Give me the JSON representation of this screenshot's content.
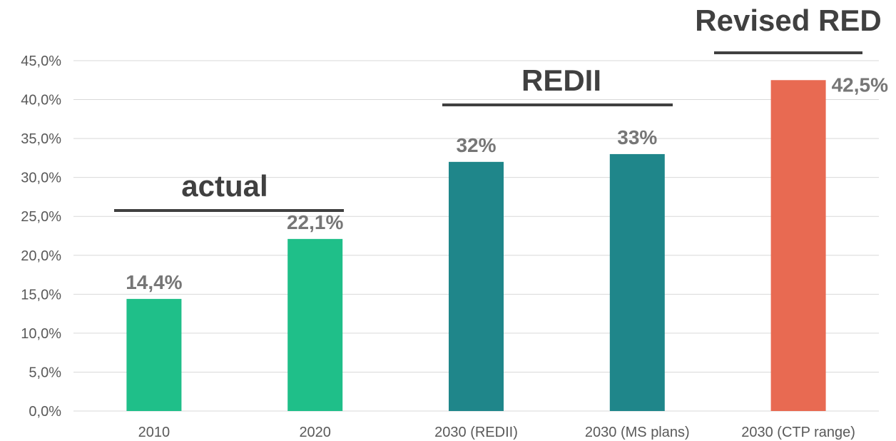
{
  "chart_data": {
    "type": "bar",
    "categories": [
      "2010",
      "2020",
      "2030 (REDII)",
      "2030 (MS plans)",
      "2030 (CTP range)"
    ],
    "values": [
      14.4,
      22.1,
      32,
      33,
      42.5
    ],
    "data_labels": [
      "14,4%",
      "22,1%",
      "32%",
      "33%",
      "42,5%"
    ],
    "bar_colors": [
      "#1fbf89",
      "#1fbf89",
      "#1f868a",
      "#1f868a",
      "#e86a52"
    ],
    "ylim": [
      0,
      45
    ],
    "yticks": [
      "0,0%",
      "5,0%",
      "10,0%",
      "15,0%",
      "20,0%",
      "25,0%",
      "30,0%",
      "35,0%",
      "40,0%",
      "45,0%"
    ],
    "grid": true,
    "groups": [
      {
        "label": "actual",
        "categories": [
          0,
          1
        ]
      },
      {
        "label": "REDII",
        "categories": [
          2,
          3
        ]
      },
      {
        "label": "Revised RED",
        "categories": [
          4
        ]
      }
    ]
  }
}
